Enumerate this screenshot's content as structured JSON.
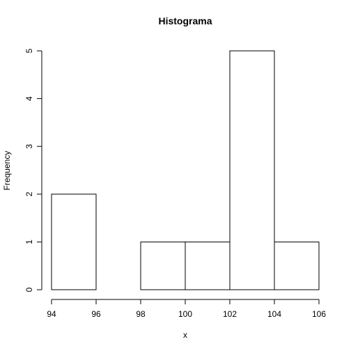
{
  "chart_data": {
    "type": "bar",
    "title": "Histograma",
    "xlabel": "x",
    "ylabel": "Frequency",
    "bins": [
      {
        "from": 94,
        "to": 96,
        "count": 2
      },
      {
        "from": 96,
        "to": 98,
        "count": 0
      },
      {
        "from": 98,
        "to": 100,
        "count": 1
      },
      {
        "from": 100,
        "to": 102,
        "count": 1
      },
      {
        "from": 102,
        "to": 104,
        "count": 5
      },
      {
        "from": 104,
        "to": 106,
        "count": 1
      }
    ],
    "xlim": [
      94,
      106
    ],
    "ylim": [
      0,
      5
    ],
    "x_ticks": [
      "94",
      "96",
      "98",
      "100",
      "102",
      "104",
      "106"
    ],
    "y_ticks": [
      "0",
      "1",
      "2",
      "3",
      "4",
      "5"
    ],
    "grid": false,
    "bar_fill": "#ffffff",
    "bar_stroke": "#000000"
  }
}
